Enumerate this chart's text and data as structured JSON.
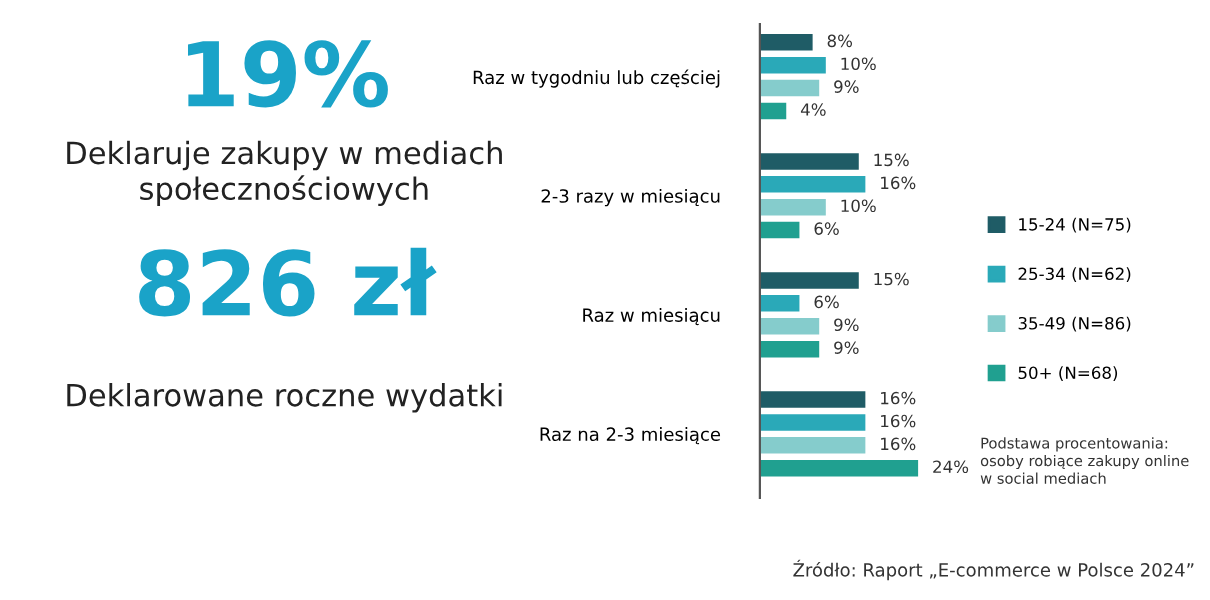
{
  "chart_data": [
    {
      "type": "other",
      "annotations": [
        "19%",
        "Deklaruje zakupy w mediach\nspołecznościowych",
        "826 zł",
        "Deklarowane roczne wydatki"
      ]
    },
    {
      "type": "bar",
      "orientation": "horizontal",
      "categories": [
        "Raz w tygodniu lub częściej",
        "2-3 razy w miesiącu",
        "Raz w miesiącu",
        "Raz na 2-3 miesiące"
      ],
      "series": [
        {
          "name": "15-24 (N=75)",
          "color": "#1f5c66",
          "values": [
            8,
            15,
            15,
            16
          ],
          "value_labels": [
            "8%",
            "15%",
            "15%",
            "16%"
          ]
        },
        {
          "name": "25-34 (N=62)",
          "color": "#2aa9b8",
          "values": [
            10,
            16,
            6,
            16
          ],
          "value_labels": [
            "10%",
            "16%",
            "6%",
            "16%"
          ]
        },
        {
          "name": "35-49 (N=86)",
          "color": "#85cccc",
          "values": [
            9,
            10,
            9,
            16
          ],
          "value_labels": [
            "9%",
            "10%",
            "9%",
            "16%"
          ]
        },
        {
          "name": "50+ (N=68)",
          "color": "#20a090",
          "values": [
            4,
            6,
            9,
            24
          ],
          "value_labels": [
            "4%",
            "6%",
            "9%",
            "24%"
          ]
        }
      ],
      "legend": "right",
      "grid": false,
      "annotations": [
        "Podstawa procentowania:\nosoby robiące zakupy online\nw social mediach",
        "Źródło: Raport „E-commerce w Polsce 2024”"
      ]
    }
  ]
}
